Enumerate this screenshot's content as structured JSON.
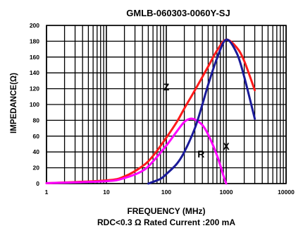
{
  "chart_data": {
    "type": "line",
    "title": "GMLB-060303-0060Y-SJ",
    "xlabel": "FREQUENCY (MHz)",
    "ylabel": "IMPEDANCE(Ω)",
    "footnote": "RDC<0.3 Ω Rated Current :200 mA",
    "x_scale": "log",
    "xlim": [
      1,
      10000
    ],
    "ylim": [
      0,
      200
    ],
    "x_ticks": [
      1,
      10,
      100,
      1000,
      10000
    ],
    "x_tick_labels": [
      "1",
      "10",
      "100",
      "1000",
      "10000"
    ],
    "y_ticks": [
      0,
      20,
      40,
      60,
      80,
      100,
      120,
      140,
      160,
      180,
      200
    ],
    "y_tick_labels": [
      "0",
      "20",
      "40",
      "60",
      "80",
      "100",
      "120",
      "140",
      "160",
      "180",
      "200"
    ],
    "grid": true,
    "series": [
      {
        "name": "Z",
        "color": "#ff1a1a",
        "x": [
          1,
          10,
          20,
          40,
          60,
          100,
          150,
          200,
          300,
          500,
          700,
          1000,
          1500,
          2000,
          3000
        ],
        "y": [
          0.5,
          4,
          9,
          22,
          35,
          58,
          78,
          95,
          118,
          148,
          168,
          182,
          172,
          155,
          118
        ]
      },
      {
        "name": "R",
        "color": "#ff00ff",
        "x": [
          1,
          10,
          20,
          40,
          60,
          100,
          150,
          200,
          250,
          300,
          400,
          500,
          700,
          900,
          1000
        ],
        "y": [
          0.5,
          3,
          7,
          16,
          28,
          48,
          66,
          78,
          82,
          81,
          74,
          62,
          36,
          10,
          0
        ]
      },
      {
        "name": "X",
        "color": "#1a1a99",
        "x": [
          50,
          80,
          100,
          150,
          200,
          300,
          400,
          500,
          700,
          1000,
          1500,
          2000,
          3000
        ],
        "y": [
          0,
          6,
          12,
          25,
          40,
          70,
          100,
          125,
          158,
          182,
          165,
          135,
          82
        ]
      }
    ],
    "curve_labels": [
      {
        "text": "Z",
        "x": 100,
        "y": 118
      },
      {
        "text": "R",
        "x": 380,
        "y": 33
      },
      {
        "text": "X",
        "x": 1000,
        "y": 43
      }
    ]
  }
}
